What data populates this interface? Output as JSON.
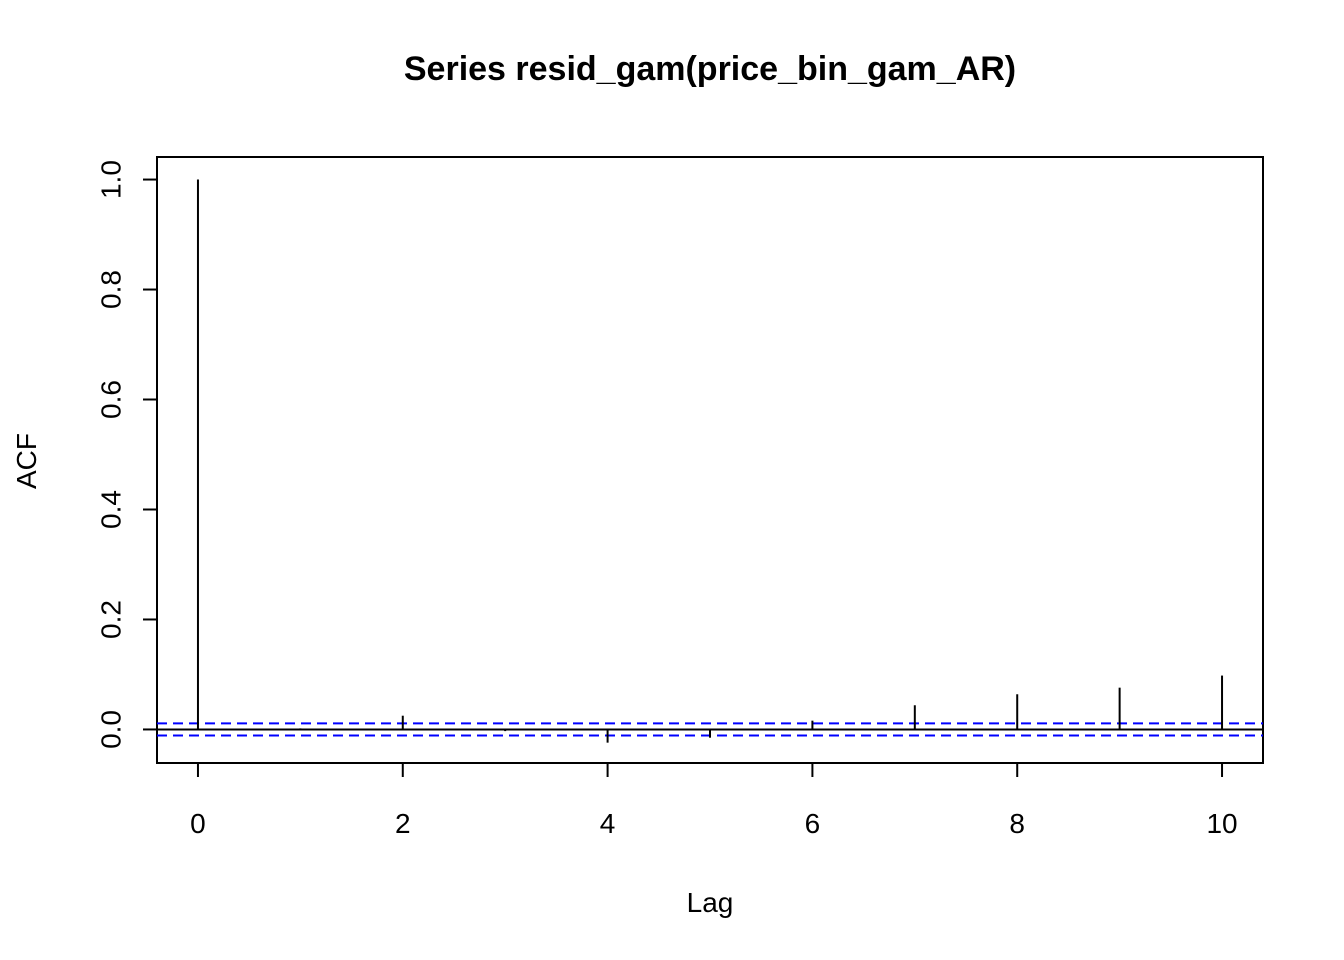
{
  "chart_data": {
    "type": "stem",
    "title": "Series  resid_gam(price_bin_gam_AR)",
    "xlabel": "Lag",
    "ylabel": "ACF",
    "x": [
      0,
      1,
      2,
      3,
      4,
      5,
      6,
      7,
      8,
      9,
      10
    ],
    "values": [
      1.0,
      0.002,
      0.025,
      -0.003,
      -0.024,
      -0.015,
      0.016,
      0.044,
      0.064,
      0.076,
      0.098
    ],
    "color": "#000000",
    "conf_limits": [
      0.011,
      -0.011
    ],
    "conf_color": "#0000ff",
    "xlim": [
      -0.4,
      10.4
    ],
    "ylim": [
      -0.061,
      1.041
    ],
    "xticks": [
      0,
      2,
      4,
      6,
      8,
      10
    ],
    "yticks": [
      {
        "value": 0,
        "label": "0.0"
      },
      0.2,
      0.4,
      0.6,
      0.8,
      {
        "value": 1,
        "label": "1.0"
      }
    ]
  }
}
